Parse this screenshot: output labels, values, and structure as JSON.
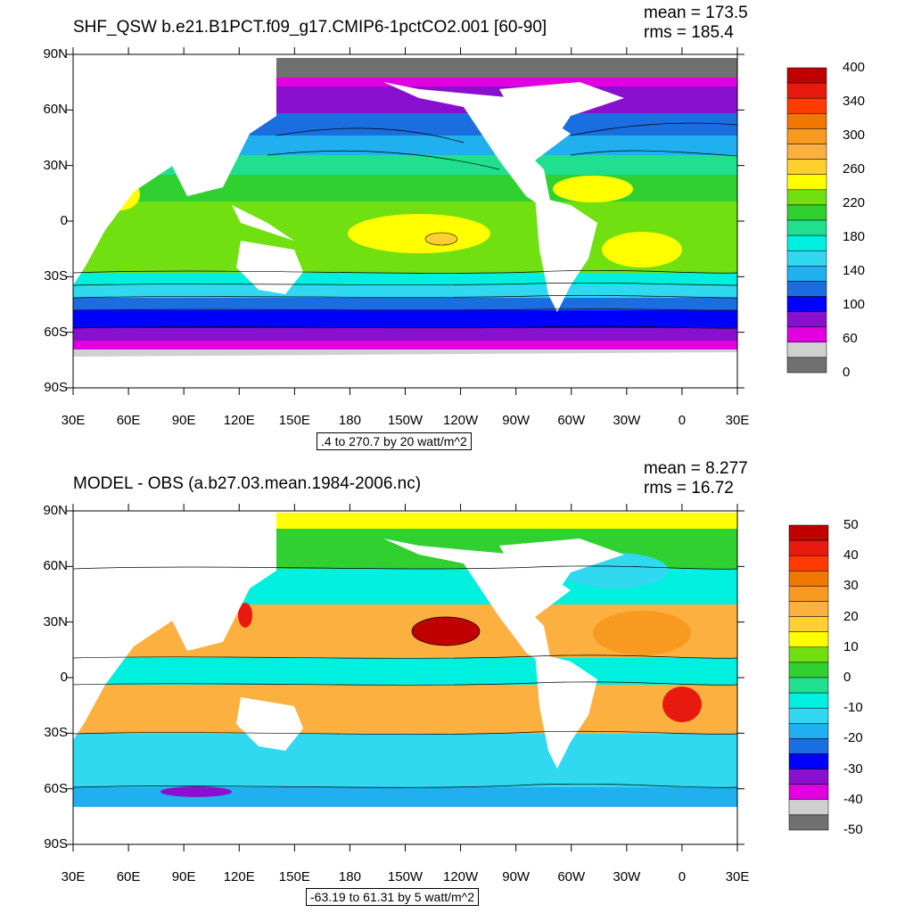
{
  "panels": [
    {
      "title": "SHF_QSW b.e21.B1PCT.f09_g17.CMIP6-1pctCO2.001 [60-90]",
      "mean": "mean = 173.5",
      "rms": "rms = 185.4",
      "range": ".4 to 270.7 by 20 watt/m^2",
      "lat_labels": [
        "90N",
        "60N",
        "30N",
        "0",
        "30S",
        "60S",
        "90S"
      ],
      "lon_labels": [
        "30E",
        "60E",
        "90E",
        "120E",
        "150E",
        "180",
        "150W",
        "120W",
        "90W",
        "60W",
        "30W",
        "0",
        "30E"
      ],
      "colorbar": {
        "colors": [
          "#c00000",
          "#e81a10",
          "#ff3a00",
          "#f07800",
          "#f89a20",
          "#fbb040",
          "#ffd030",
          "#ffff00",
          "#70e010",
          "#30d030",
          "#20e090",
          "#00f0e0",
          "#30d8f0",
          "#20b0f0",
          "#1a6ee0",
          "#0000ff",
          "#8a10d0",
          "#e000e0",
          "#d0d0d0",
          "#707070"
        ],
        "labels": [
          "400",
          "340",
          "300",
          "260",
          "220",
          "180",
          "140",
          "100",
          "60",
          "0"
        ]
      }
    },
    {
      "title": "MODEL - OBS (a.b27.03.mean.1984-2006.nc)",
      "mean": "mean = 8.277",
      "rms": "rms = 16.72",
      "range": "-63.19 to 61.31 by 5 watt/m^2",
      "lat_labels": [
        "90N",
        "60N",
        "30N",
        "0",
        "30S",
        "60S",
        "90S"
      ],
      "lon_labels": [
        "30E",
        "60E",
        "90E",
        "120E",
        "150E",
        "180",
        "150W",
        "120W",
        "90W",
        "60W",
        "30W",
        "0",
        "30E"
      ],
      "colorbar": {
        "colors": [
          "#c00000",
          "#e81a10",
          "#ff3a00",
          "#f07800",
          "#f89a20",
          "#fbb040",
          "#ffd030",
          "#ffff00",
          "#70e010",
          "#30d030",
          "#20e090",
          "#00f0e0",
          "#30d8f0",
          "#20b0f0",
          "#1a6ee0",
          "#0000ff",
          "#8a10d0",
          "#e000e0",
          "#d0d0d0",
          "#707070"
        ],
        "labels": [
          "50",
          "40",
          "30",
          "20",
          "10",
          "0",
          "-10",
          "-20",
          "-30",
          "-40",
          "-50"
        ]
      }
    }
  ]
}
